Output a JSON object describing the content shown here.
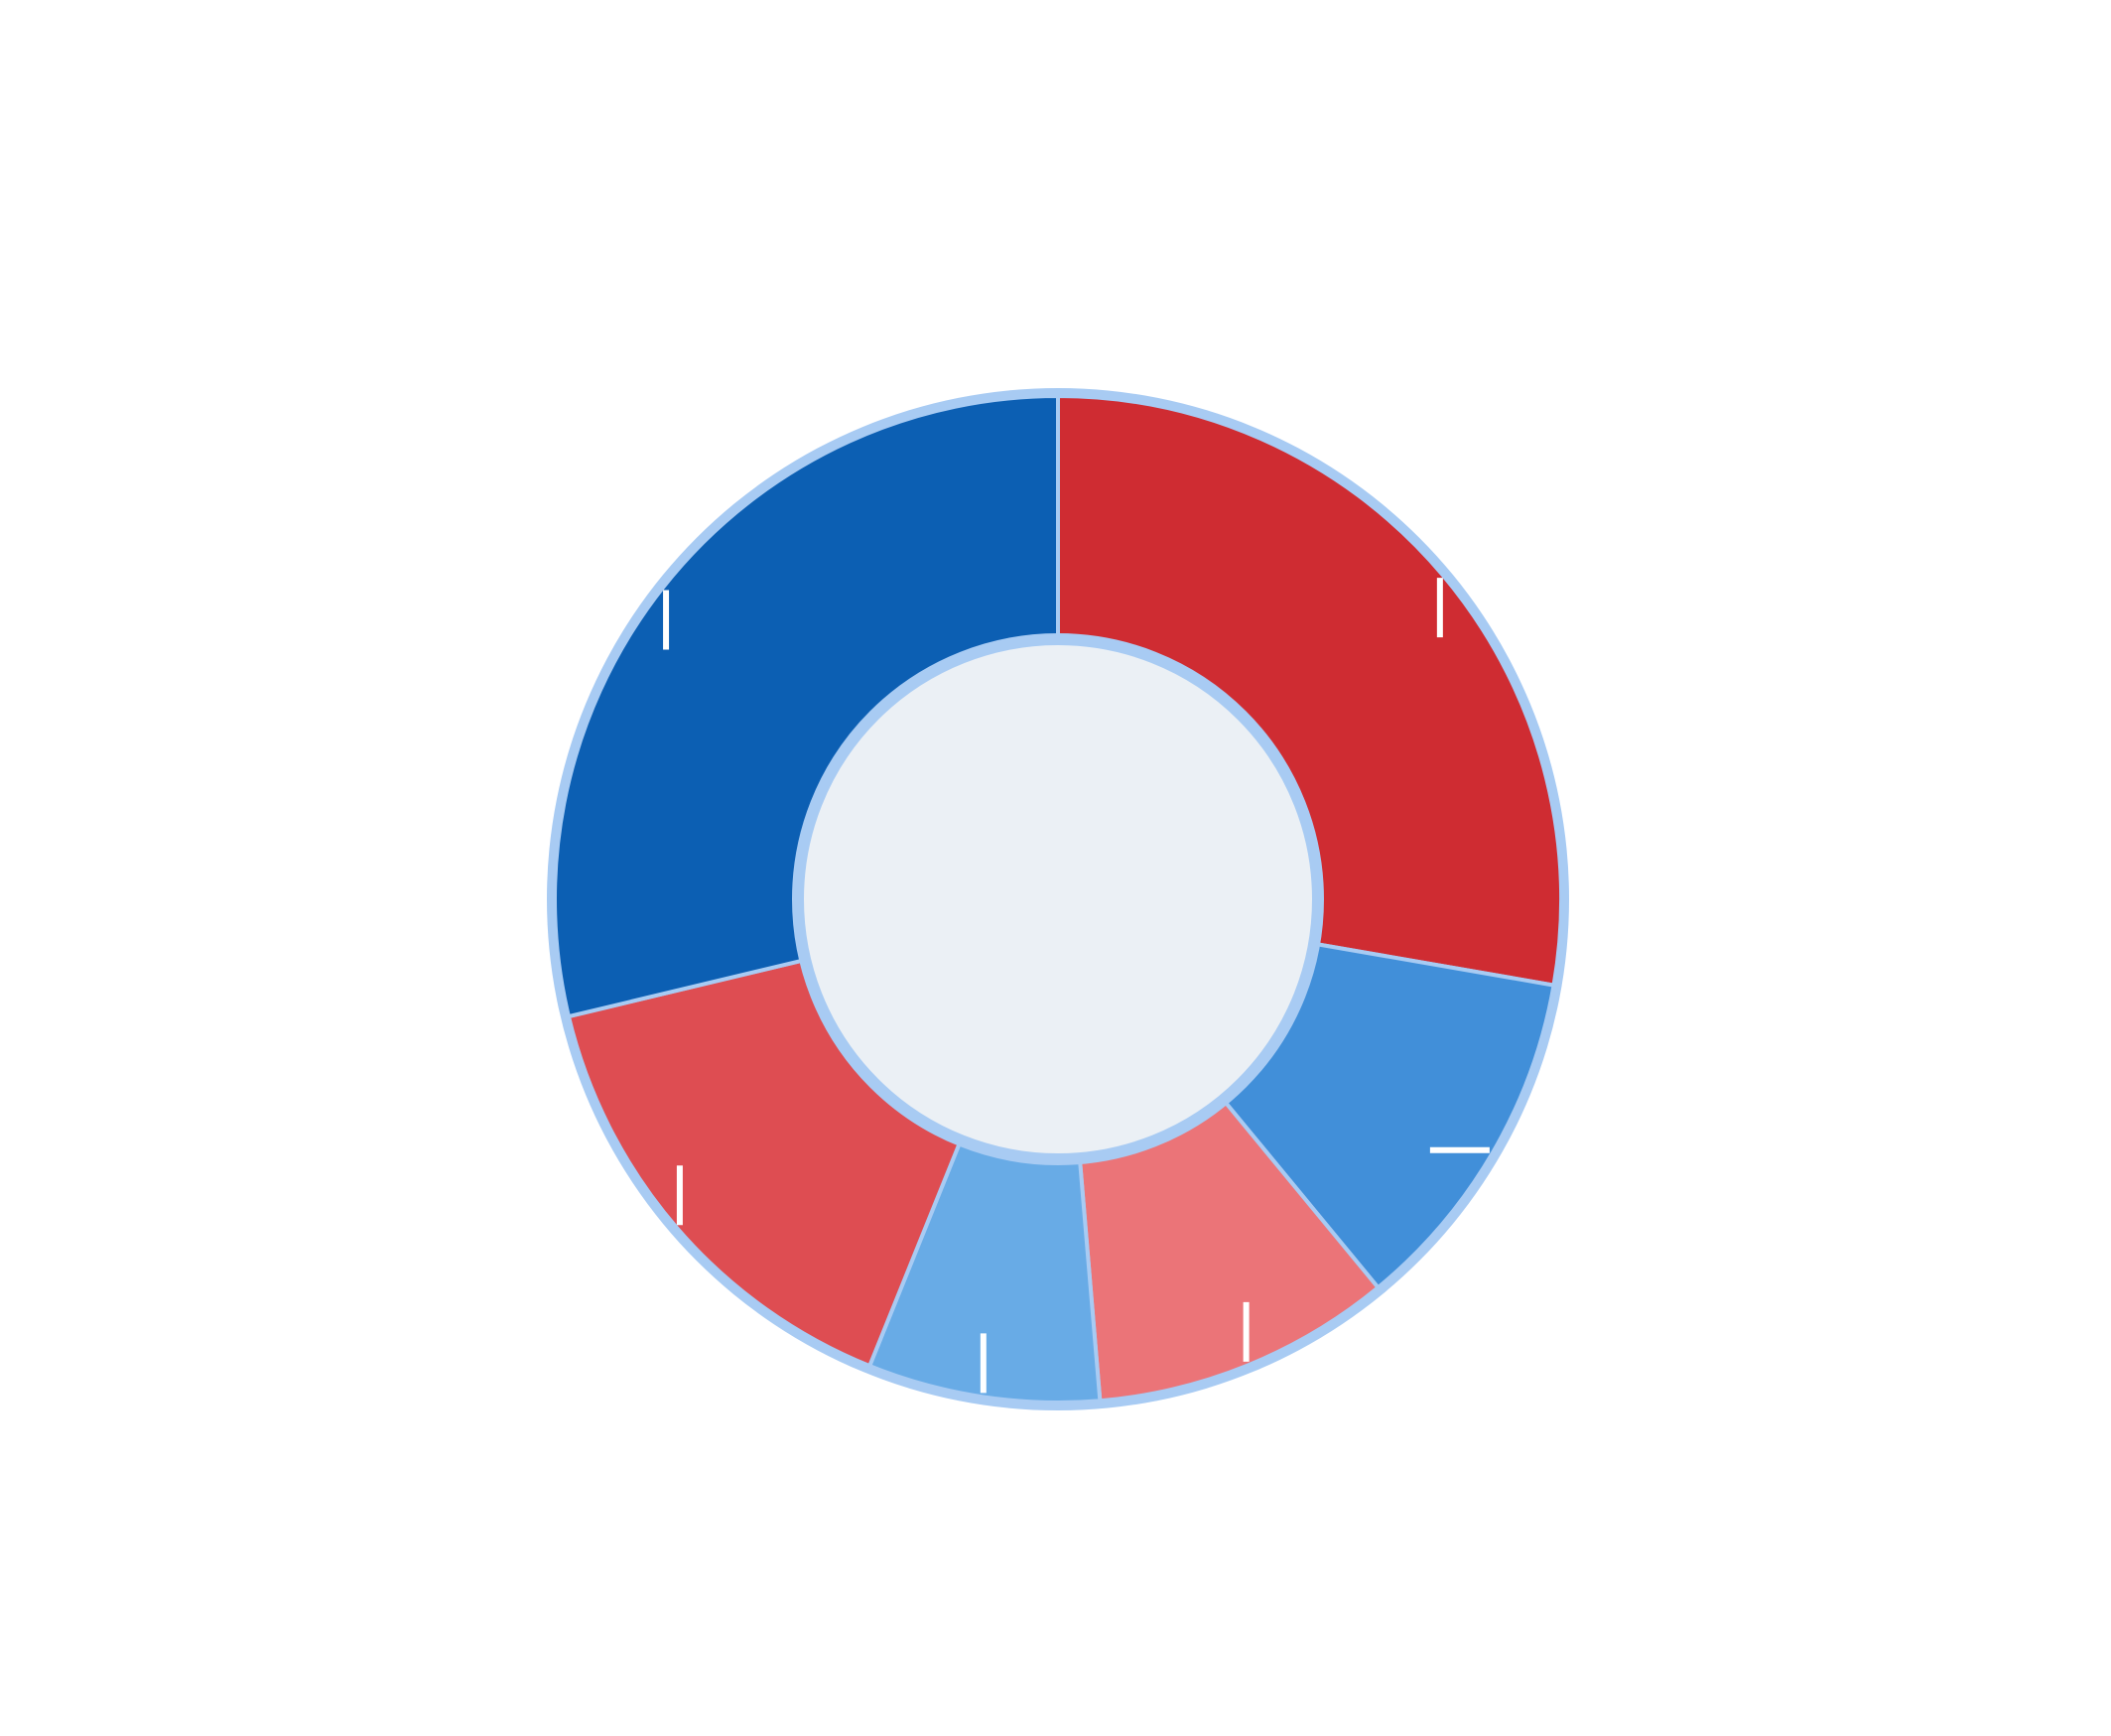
{
  "chart_data": {
    "type": "pie",
    "variant": "donut",
    "legend": "none",
    "slices": [
      {
        "value": 30.2,
        "color": "#cf2c32"
      },
      {
        "value": 12.3,
        "color": "#418fd9"
      },
      {
        "value": 10.5,
        "color": "#eb7478"
      },
      {
        "value": 8.1,
        "color": "#68abe6"
      },
      {
        "value": 16.5,
        "color": "#de4d52"
      },
      {
        "value": 31.3,
        "color": "#0c5fb3"
      }
    ],
    "colors": {
      "ring_border": "#a8cbf3",
      "center_fill": "#ebf0f5",
      "separator": "#a8cbf3",
      "tick": "#ffffff"
    }
  }
}
